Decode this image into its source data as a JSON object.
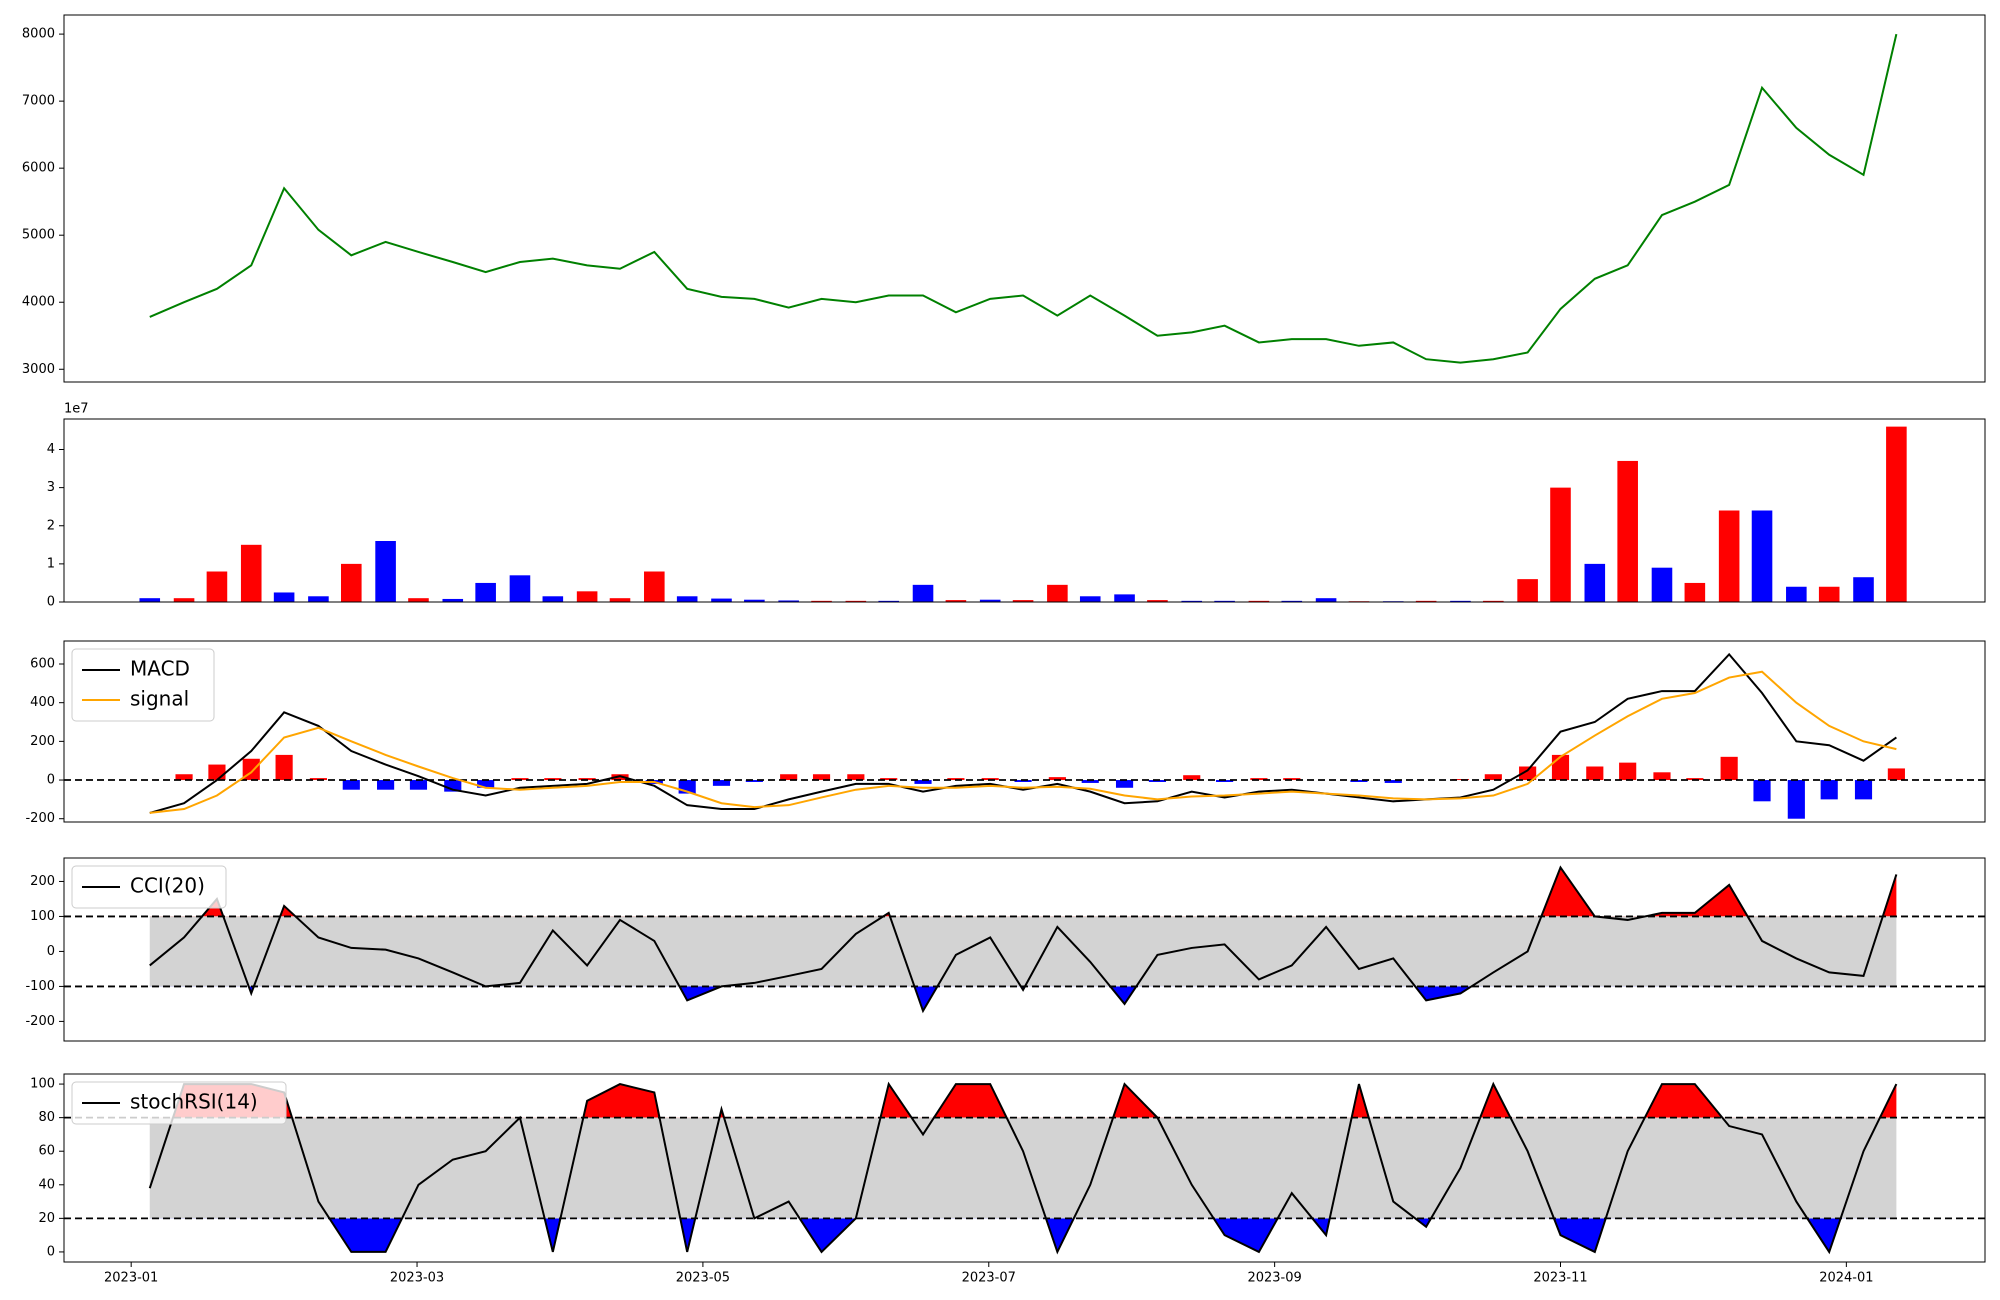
{
  "chart_data": [
    {
      "type": "line",
      "color": "#008000",
      "x": [
        0.13,
        0.37,
        0.6,
        0.84,
        1.07,
        1.31,
        1.54,
        1.78,
        2.01,
        2.25,
        2.48,
        2.72,
        2.95,
        3.19,
        3.42,
        3.66,
        3.89,
        4.13,
        4.36,
        4.6,
        4.83,
        5.07,
        5.3,
        5.54,
        5.77,
        6.01,
        6.24,
        6.48,
        6.71,
        6.95,
        7.18,
        7.42,
        7.65,
        7.89,
        8.12,
        8.36,
        8.59,
        8.83,
        9.06,
        9.3,
        9.53,
        9.77,
        10.0,
        10.24,
        10.47,
        10.71,
        10.94,
        11.18,
        11.41,
        11.65,
        11.88,
        12.12,
        12.35
      ],
      "values": [
        3780,
        4000,
        4200,
        4550,
        5700,
        5080,
        4700,
        4900,
        4750,
        4600,
        4450,
        4600,
        4650,
        4550,
        4500,
        4750,
        4200,
        4080,
        4050,
        3920,
        4050,
        4000,
        4100,
        4100,
        3850,
        4050,
        4100,
        3800,
        4100,
        3800,
        3500,
        3550,
        3650,
        3400,
        3450,
        3450,
        3350,
        3400,
        3150,
        3100,
        3150,
        3250,
        3900,
        4350,
        4550,
        5300,
        5500,
        5750,
        7200,
        6600,
        6200,
        5900,
        8000
      ],
      "xlim": [
        -0.47,
        12.97
      ],
      "ylim": [
        2810,
        8285
      ],
      "yticks": [
        3000,
        4000,
        5000,
        6000,
        7000,
        8000
      ]
    },
    {
      "type": "bar",
      "offset_label": "1e7",
      "x": [
        0.13,
        0.37,
        0.6,
        0.84,
        1.07,
        1.31,
        1.54,
        1.78,
        2.01,
        2.25,
        2.48,
        2.72,
        2.95,
        3.19,
        3.42,
        3.66,
        3.89,
        4.13,
        4.36,
        4.6,
        4.83,
        5.07,
        5.3,
        5.54,
        5.77,
        6.01,
        6.24,
        6.48,
        6.71,
        6.95,
        7.18,
        7.42,
        7.65,
        7.89,
        8.12,
        8.36,
        8.59,
        8.83,
        9.06,
        9.3,
        9.53,
        9.77,
        10.0,
        10.24,
        10.47,
        10.71,
        10.94,
        11.18,
        11.41,
        11.65,
        11.88,
        12.12,
        12.35
      ],
      "values": [
        1000000,
        1000000,
        8000000,
        15000000,
        2500000,
        1500000,
        10000000,
        16000000,
        1000000,
        800000,
        5000000,
        7000000,
        1500000,
        2800000,
        1000000,
        8000000,
        1500000,
        900000,
        600000,
        400000,
        300000,
        300000,
        300000,
        4500000,
        500000,
        600000,
        500000,
        4500000,
        1500000,
        2000000,
        500000,
        300000,
        300000,
        300000,
        300000,
        1000000,
        200000,
        200000,
        300000,
        300000,
        300000,
        6000000,
        30000000,
        10000000,
        37000000,
        9000000,
        5000000,
        24000000,
        24000000,
        4000000,
        4000000,
        6500000,
        46000000
      ],
      "colors": [
        "#0000ff",
        "#ff0000",
        "#ff0000",
        "#ff0000",
        "#0000ff",
        "#0000ff",
        "#ff0000",
        "#0000ff",
        "#ff0000",
        "#0000ff",
        "#0000ff",
        "#0000ff",
        "#0000ff",
        "#ff0000",
        "#ff0000",
        "#ff0000",
        "#0000ff",
        "#0000ff",
        "#0000ff",
        "#0000ff",
        "#ff0000",
        "#ff0000",
        "#0000ff",
        "#0000ff",
        "#ff0000",
        "#0000ff",
        "#ff0000",
        "#ff0000",
        "#0000ff",
        "#0000ff",
        "#ff0000",
        "#0000ff",
        "#0000ff",
        "#ff0000",
        "#0000ff",
        "#0000ff",
        "#ff0000",
        "#0000ff",
        "#ff0000",
        "#0000ff",
        "#ff0000",
        "#ff0000",
        "#ff0000",
        "#0000ff",
        "#ff0000",
        "#0000ff",
        "#ff0000",
        "#ff0000",
        "#0000ff",
        "#0000ff",
        "#ff0000",
        "#0000ff",
        "#ff0000"
      ],
      "xlim": [
        -0.47,
        12.97
      ],
      "ylim": [
        0,
        48000000
      ],
      "yticks": [
        0,
        {
          "value": 10000000,
          "label": "1"
        },
        {
          "value": 20000000,
          "label": "2"
        },
        {
          "value": 30000000,
          "label": "3"
        },
        {
          "value": 40000000,
          "label": "4"
        }
      ]
    },
    {
      "type": "macd",
      "legend": "upper left",
      "x": [
        0.13,
        0.37,
        0.6,
        0.84,
        1.07,
        1.31,
        1.54,
        1.78,
        2.01,
        2.25,
        2.48,
        2.72,
        2.95,
        3.19,
        3.42,
        3.66,
        3.89,
        4.13,
        4.36,
        4.6,
        4.83,
        5.07,
        5.3,
        5.54,
        5.77,
        6.01,
        6.24,
        6.48,
        6.71,
        6.95,
        7.18,
        7.42,
        7.65,
        7.89,
        8.12,
        8.36,
        8.59,
        8.83,
        9.06,
        9.3,
        9.53,
        9.77,
        10.0,
        10.24,
        10.47,
        10.71,
        10.94,
        11.18,
        11.41,
        11.65,
        11.88,
        12.12,
        12.35
      ],
      "series": [
        {
          "name": "MACD",
          "color": "#000000",
          "values": [
            -170,
            -120,
            0,
            150,
            350,
            280,
            150,
            80,
            20,
            -50,
            -80,
            -40,
            -30,
            -20,
            20,
            -30,
            -130,
            -150,
            -150,
            -100,
            -60,
            -20,
            -20,
            -60,
            -30,
            -20,
            -50,
            -20,
            -60,
            -120,
            -110,
            -60,
            -90,
            -60,
            -50,
            -70,
            -90,
            -110,
            -100,
            -90,
            -50,
            50,
            250,
            300,
            420,
            460,
            460,
            650,
            450,
            200,
            180,
            100,
            220
          ]
        },
        {
          "name": "signal",
          "color": "#ffa500",
          "values": [
            -170,
            -150,
            -80,
            40,
            220,
            270,
            200,
            130,
            70,
            10,
            -40,
            -50,
            -40,
            -30,
            -10,
            -10,
            -60,
            -120,
            -140,
            -130,
            -90,
            -50,
            -30,
            -40,
            -40,
            -30,
            -40,
            -35,
            -45,
            -80,
            -100,
            -85,
            -80,
            -70,
            -60,
            -70,
            -80,
            -95,
            -100,
            -95,
            -80,
            -20,
            120,
            230,
            330,
            420,
            450,
            530,
            560,
            400,
            280,
            200,
            160
          ]
        }
      ],
      "histogram": {
        "up_color": "#ff0000",
        "down_color": "#0000ff",
        "values": [
          0,
          30,
          80,
          110,
          130,
          10,
          -50,
          -50,
          -50,
          -60,
          -40,
          10,
          10,
          10,
          30,
          -20,
          -70,
          -30,
          -10,
          30,
          30,
          30,
          10,
          -20,
          10,
          10,
          -10,
          15,
          -15,
          -40,
          -10,
          25,
          -10,
          10,
          10,
          0,
          -10,
          -15,
          0,
          5,
          30,
          70,
          130,
          70,
          90,
          40,
          10,
          120,
          -110,
          -200,
          -100,
          -100,
          60
        ]
      },
      "hlines": [
        0
      ],
      "xlim": [
        -0.47,
        12.97
      ],
      "ylim": [
        -217,
        719
      ],
      "yticks": [
        -200,
        0,
        200,
        400,
        600
      ]
    },
    {
      "type": "oscillator",
      "legend": "upper left",
      "band_color": "#d3d3d3",
      "above_color": "#ff0000",
      "below_color": "#0000ff",
      "x": [
        0.13,
        0.37,
        0.6,
        0.84,
        1.07,
        1.31,
        1.54,
        1.78,
        2.01,
        2.25,
        2.48,
        2.72,
        2.95,
        3.19,
        3.42,
        3.66,
        3.89,
        4.13,
        4.36,
        4.6,
        4.83,
        5.07,
        5.3,
        5.54,
        5.77,
        6.01,
        6.24,
        6.48,
        6.71,
        6.95,
        7.18,
        7.42,
        7.65,
        7.89,
        8.12,
        8.36,
        8.59,
        8.83,
        9.06,
        9.3,
        9.53,
        9.77,
        10.0,
        10.24,
        10.47,
        10.71,
        10.94,
        11.18,
        11.41,
        11.65,
        11.88,
        12.12,
        12.35
      ],
      "series": [
        {
          "name": "CCI(20)",
          "color": "#000000",
          "values": [
            -40,
            40,
            150,
            -120,
            130,
            40,
            10,
            5,
            -20,
            -60,
            -100,
            -90,
            60,
            -40,
            90,
            30,
            -140,
            -100,
            -90,
            -70,
            -50,
            50,
            110,
            -170,
            -10,
            40,
            -110,
            70,
            -30,
            -150,
            -10,
            10,
            20,
            -80,
            -40,
            70,
            -50,
            -20,
            -140,
            -120,
            -60,
            0,
            240,
            100,
            90,
            110,
            110,
            190,
            30,
            -20,
            -60,
            -70,
            220
          ]
        }
      ],
      "hlines": [
        -100,
        100
      ],
      "xlim": [
        -0.47,
        12.97
      ],
      "ylim": [
        -256,
        267
      ],
      "yticks": [
        -200,
        -100,
        0,
        100,
        200
      ]
    },
    {
      "type": "oscillator",
      "legend": "upper left",
      "band_color": "#d3d3d3",
      "above_color": "#ff0000",
      "below_color": "#0000ff",
      "x": [
        0.13,
        0.37,
        0.6,
        0.84,
        1.07,
        1.31,
        1.54,
        1.78,
        2.01,
        2.25,
        2.48,
        2.72,
        2.95,
        3.19,
        3.42,
        3.66,
        3.89,
        4.13,
        4.36,
        4.6,
        4.83,
        5.07,
        5.3,
        5.54,
        5.77,
        6.01,
        6.24,
        6.48,
        6.71,
        6.95,
        7.18,
        7.42,
        7.65,
        7.89,
        8.12,
        8.36,
        8.59,
        8.83,
        9.06,
        9.3,
        9.53,
        9.77,
        10.0,
        10.24,
        10.47,
        10.71,
        10.94,
        11.18,
        11.41,
        11.65,
        11.88,
        12.12,
        12.35
      ],
      "series": [
        {
          "name": "stochRSI(14)",
          "color": "#000000",
          "values": [
            38,
            100,
            100,
            100,
            95,
            30,
            0,
            0,
            40,
            55,
            60,
            80,
            0,
            90,
            100,
            95,
            0,
            85,
            20,
            30,
            0,
            20,
            100,
            70,
            100,
            100,
            60,
            0,
            40,
            100,
            80,
            40,
            10,
            0,
            35,
            10,
            100,
            30,
            15,
            50,
            100,
            60,
            10,
            0,
            60,
            100,
            100,
            75,
            70,
            30,
            0,
            60,
            100
          ]
        }
      ],
      "hlines": [
        20,
        80
      ],
      "xlim": [
        -0.47,
        12.97
      ],
      "ylim": [
        -6,
        106
      ],
      "yticks": [
        0,
        20,
        40,
        60,
        80,
        100
      ],
      "xticks": [
        {
          "value": 0,
          "label": "2023-01"
        },
        {
          "value": 2,
          "label": "2023-03"
        },
        {
          "value": 4,
          "label": "2023-05"
        },
        {
          "value": 6,
          "label": "2023-07"
        },
        {
          "value": 8,
          "label": "2023-09"
        },
        {
          "value": 10,
          "label": "2023-11"
        },
        {
          "value": 12,
          "label": "2024-01"
        }
      ]
    }
  ]
}
